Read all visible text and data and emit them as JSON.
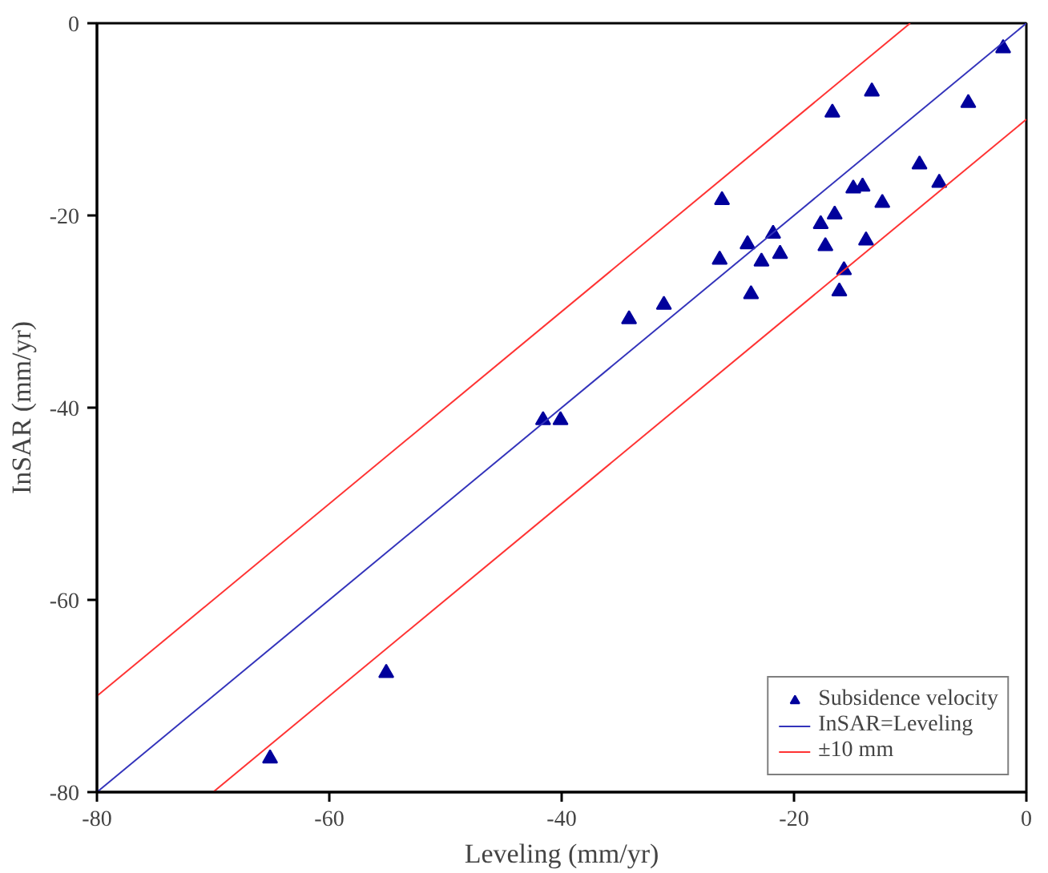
{
  "chart_data": {
    "type": "scatter",
    "xlabel": "Leveling (mm/yr)",
    "ylabel": "InSAR (mm/yr)",
    "xlim": [
      -80,
      0
    ],
    "ylim": [
      -80,
      0
    ],
    "xticks": [
      -80,
      -60,
      -40,
      -20,
      0
    ],
    "yticks": [
      -80,
      -60,
      -40,
      -20,
      0
    ],
    "grid": false,
    "legend": "bottom right",
    "series": [
      {
        "name": "Subsidence velocity",
        "marker": "triangle",
        "color": "#00009c",
        "x": [
          -2.0,
          -13.3,
          -16.7,
          -5.0,
          -9.2,
          -7.5,
          -14.9,
          -14.1,
          -12.4,
          -26.2,
          -16.5,
          -17.7,
          -21.8,
          -24.0,
          -17.3,
          -13.8,
          -21.2,
          -26.4,
          -22.8,
          -15.7,
          -23.7,
          -16.1,
          -31.2,
          -34.2,
          -41.6,
          -40.1,
          -55.1,
          -65.1
        ],
        "values": [
          -2.6,
          -7.1,
          -9.3,
          -8.3,
          -14.7,
          -16.6,
          -17.2,
          -17.0,
          -18.7,
          -18.4,
          -19.9,
          -20.9,
          -21.9,
          -23.0,
          -23.2,
          -22.6,
          -24.0,
          -24.6,
          -24.8,
          -25.7,
          -28.2,
          -27.9,
          -29.3,
          -30.8,
          -41.3,
          -41.3,
          -67.6,
          -76.5
        ]
      },
      {
        "name": "InSAR=Leveling",
        "type": "line",
        "color": "#3333bb",
        "x": [
          -80,
          0
        ],
        "values": [
          -80,
          0
        ]
      },
      {
        "name": "±10 mm",
        "type": "line",
        "color": "#ff3333",
        "x": [
          -80,
          -10
        ],
        "values": [
          -70,
          0
        ]
      },
      {
        "type": "line",
        "color": "#ff3333",
        "x": [
          -70,
          0
        ],
        "values": [
          -80,
          -10
        ]
      }
    ]
  }
}
